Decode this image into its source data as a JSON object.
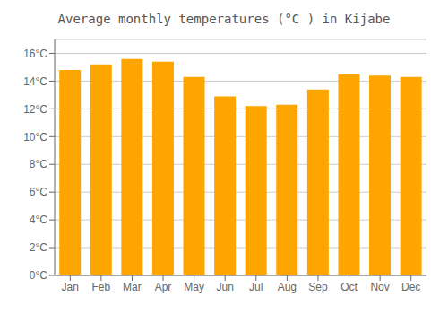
{
  "chart_data": {
    "type": "bar",
    "title": "Average monthly temperatures (°C ) in Kijabe",
    "categories": [
      "Jan",
      "Feb",
      "Mar",
      "Apr",
      "May",
      "Jun",
      "Jul",
      "Aug",
      "Sep",
      "Oct",
      "Nov",
      "Dec"
    ],
    "values": [
      14.8,
      15.2,
      15.6,
      15.4,
      14.3,
      12.9,
      12.2,
      12.3,
      13.4,
      14.5,
      14.4,
      14.3
    ],
    "color": "#FFA500",
    "ylim": [
      0,
      17
    ],
    "yticks": [
      {
        "value": 0,
        "label": "0°C"
      },
      {
        "value": 2,
        "label": "2°C"
      },
      {
        "value": 4,
        "label": "4°C"
      },
      {
        "value": 6,
        "label": "6°C"
      },
      {
        "value": 8,
        "label": "8°C"
      },
      {
        "value": 10,
        "label": "10°C"
      },
      {
        "value": 12,
        "label": "12°C"
      },
      {
        "value": 14,
        "label": "14°C"
      },
      {
        "value": 16,
        "label": "16°C"
      }
    ],
    "grid": true
  }
}
